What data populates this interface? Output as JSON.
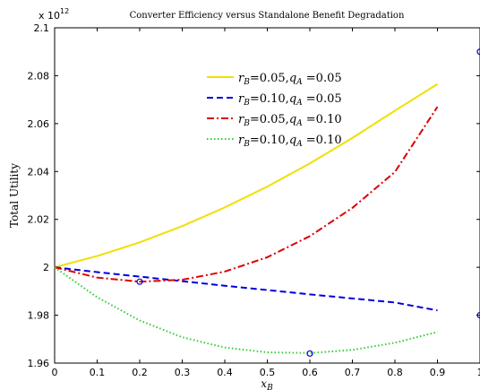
{
  "chart_data": {
    "type": "line",
    "title": "Converter Efficiency versus Standalone Benefit Degradation",
    "xlabel": "x_B",
    "ylabel": "Total Utility",
    "y_exponent_label": "x 10",
    "y_exponent_power": "12",
    "xlim": [
      0,
      1
    ],
    "ylim": [
      1.96,
      2.1
    ],
    "x_ticks": [
      "0",
      "0.1",
      "0.2",
      "0.3",
      "0.4",
      "0.5",
      "0.6",
      "0.7",
      "0.8",
      "0.9",
      "1"
    ],
    "y_ticks": [
      "1.96",
      "1.98",
      "2",
      "2.02",
      "2.04",
      "2.06",
      "2.08",
      "2.1"
    ],
    "grid": false,
    "legend_position": "top-right",
    "x": [
      0,
      0.1,
      0.2,
      0.3,
      0.4,
      0.5,
      0.6,
      0.7,
      0.8,
      0.9
    ],
    "series": [
      {
        "label_r": "0.05",
        "label_q": "0.05",
        "color": "#f0e000",
        "style": "solid",
        "values": [
          2.0,
          2.0047,
          2.0104,
          2.0172,
          2.025,
          2.0337,
          2.0434,
          2.054,
          2.0654,
          2.0765
        ]
      },
      {
        "label_r": "0.10",
        "label_q": "0.05",
        "color": "#0000dd",
        "style": "dashed",
        "values": [
          2.0,
          1.998,
          1.9961,
          1.9942,
          1.9923,
          1.9905,
          1.9887,
          1.987,
          1.9853,
          1.982
        ]
      },
      {
        "label_r": "0.05",
        "label_q": "0.10",
        "color": "#dd0000",
        "style": "dashdot",
        "values": [
          2.0,
          1.9957,
          1.994,
          1.9948,
          1.9982,
          2.0042,
          2.013,
          2.0248,
          2.0398,
          2.067
        ]
      },
      {
        "label_r": "0.10",
        "label_q": "0.10",
        "color": "#33cc33",
        "style": "dotted",
        "values": [
          2.0,
          1.9875,
          1.9778,
          1.9708,
          1.9665,
          1.9645,
          1.9642,
          1.9655,
          1.9685,
          1.973
        ]
      }
    ],
    "markers": [
      {
        "x": 0.2,
        "y": 1.994
      },
      {
        "x": 0.6,
        "y": 1.964
      },
      {
        "x": 1.0,
        "y": 2.09
      },
      {
        "x": 1.0,
        "y": 1.98
      }
    ],
    "marker_color": "#0000cc"
  }
}
